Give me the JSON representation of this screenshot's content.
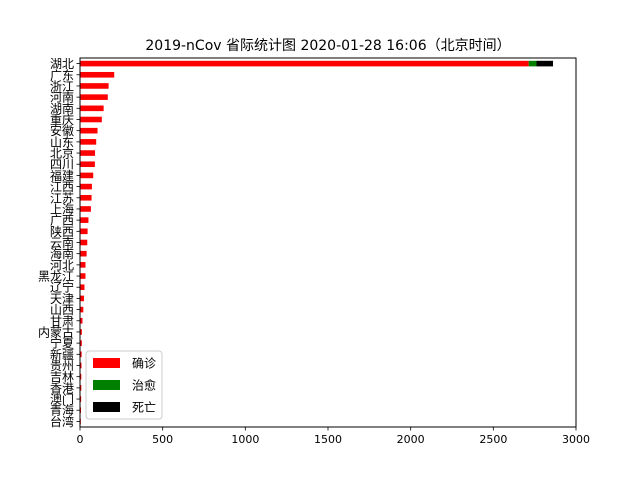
{
  "chart_data": {
    "type": "bar",
    "orientation": "horizontal",
    "stacked": true,
    "title": "2019-nCov 省际统计图 2020-01-28 16:06（北京时间）",
    "categories": [
      "湖北",
      "广东",
      "浙江",
      "河南",
      "湖南",
      "重庆",
      "安徽",
      "山东",
      "北京",
      "四川",
      "福建",
      "江西",
      "江苏",
      "上海",
      "广西",
      "陕西",
      "云南",
      "海南",
      "河北",
      "黑龙江",
      "辽宁",
      "天津",
      "山西",
      "甘肃",
      "内蒙古",
      "宁夏",
      "新疆",
      "贵州",
      "吉林",
      "香港",
      "澳门",
      "青海",
      "台湾"
    ],
    "series": [
      {
        "name": "确诊",
        "color": "#ff0000",
        "values": [
          2714,
          207,
          173,
          168,
          143,
          132,
          106,
          98,
          91,
          90,
          80,
          72,
          70,
          66,
          51,
          46,
          44,
          40,
          33,
          33,
          27,
          24,
          20,
          15,
          11,
          11,
          10,
          9,
          8,
          8,
          7,
          6,
          5
        ]
      },
      {
        "name": "治愈",
        "color": "#008000",
        "values": [
          47,
          0,
          0,
          0,
          0,
          0,
          0,
          0,
          0,
          0,
          0,
          0,
          0,
          0,
          0,
          0,
          0,
          0,
          0,
          0,
          0,
          0,
          0,
          0,
          0,
          0,
          0,
          0,
          0,
          0,
          0,
          0,
          0
        ]
      },
      {
        "name": "死亡",
        "color": "#000000",
        "values": [
          100,
          0,
          0,
          0,
          0,
          0,
          0,
          0,
          0,
          0,
          0,
          0,
          0,
          0,
          0,
          0,
          0,
          0,
          0,
          0,
          0,
          0,
          0,
          0,
          0,
          0,
          0,
          0,
          0,
          0,
          0,
          0,
          0
        ]
      }
    ],
    "xlim": [
      0,
      3000
    ],
    "xticks": [
      0,
      500,
      1000,
      1500,
      2000,
      2500,
      3000
    ],
    "xlabel": "",
    "ylabel": "",
    "grid": false,
    "legend_position": "bottom-left"
  }
}
